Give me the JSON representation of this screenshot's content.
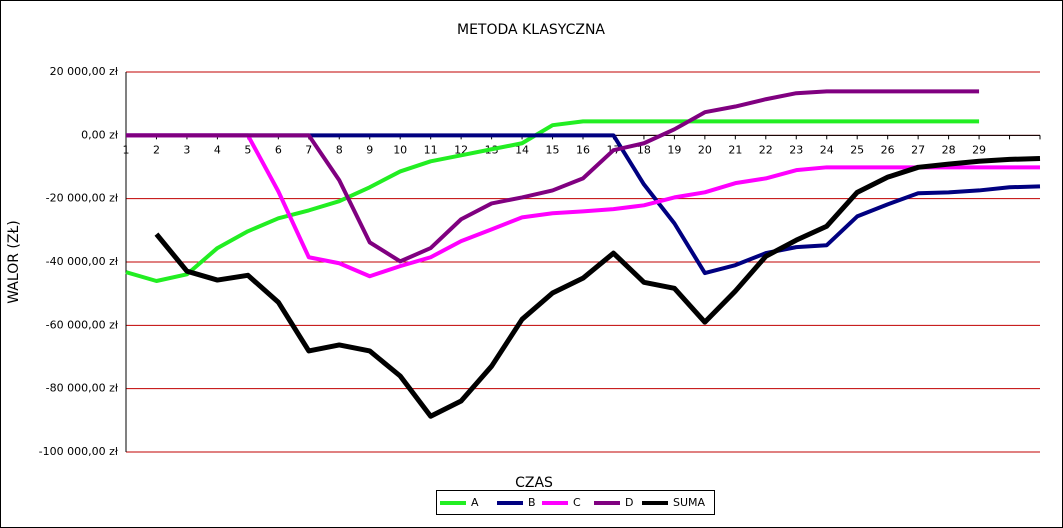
{
  "chart_data": {
    "type": "line",
    "title": "METODA KLASYCZNA",
    "x_label": "CZAS",
    "y_label": "WALOR (ZŁ)",
    "categories": [
      "1",
      "2",
      "3",
      "4",
      "5",
      "6",
      "7",
      "8",
      "9",
      "10",
      "11",
      "12",
      "13",
      "14",
      "15",
      "16",
      "17",
      "18",
      "19",
      "20",
      "21",
      "22",
      "23",
      "24",
      "25",
      "26",
      "27",
      "28",
      "29",
      null,
      null
    ],
    "ylim": [
      -100000,
      20000
    ],
    "yticks": [
      {
        "value": -100000,
        "label": "-100 000,00 zł"
      },
      {
        "value": -80000,
        "label": "-80 000,00 zł"
      },
      {
        "value": -60000,
        "label": "-60 000,00 zł"
      },
      {
        "value": -40000,
        "label": "-40 000,00 zł"
      },
      {
        "value": -20000,
        "label": "-20 000,00 zł"
      },
      {
        "value": 0,
        "label": "0,00 zł"
      },
      {
        "value": 20000,
        "label": "20 000,00 zł"
      }
    ],
    "grid": true,
    "series": [
      {
        "name": "A",
        "color": "#22ee22",
        "values": [
          -43200,
          -46000,
          -43900,
          -35600,
          -30300,
          -26200,
          -23700,
          -20800,
          -16400,
          -11400,
          -8200,
          -6300,
          -4400,
          -2500,
          3200,
          4400,
          4400,
          4400,
          4400,
          4400,
          4400,
          4400,
          4400,
          4400,
          4400,
          4400,
          4400,
          4400,
          4400,
          null,
          null
        ]
      },
      {
        "name": "B",
        "color": "#000080",
        "values": [
          0,
          0,
          0,
          0,
          0,
          0,
          0,
          0,
          0,
          0,
          0,
          0,
          0,
          0,
          0,
          0,
          0,
          -15500,
          -27800,
          -43500,
          -41000,
          -37200,
          -35300,
          -34700,
          -25600,
          -21800,
          -18300,
          -18000,
          -17400,
          -16400,
          -16100
        ]
      },
      {
        "name": "C",
        "color": "#ff00ff",
        "values": [
          0,
          0,
          0,
          0,
          0,
          -17700,
          -38500,
          -40400,
          -44500,
          -41300,
          -38500,
          -33400,
          -29700,
          -25900,
          -24600,
          -24000,
          -23300,
          -22100,
          -19600,
          -18000,
          -15100,
          -13600,
          -11000,
          -10100,
          -10100,
          -10100,
          -10100,
          -10100,
          -10100,
          -10100,
          -10100
        ]
      },
      {
        "name": "D",
        "color": "#800080",
        "values": [
          0,
          0,
          0,
          0,
          0,
          0,
          0,
          -14200,
          -33800,
          -39800,
          -35600,
          -26500,
          -21500,
          -19600,
          -17400,
          -13600,
          -4700,
          -2500,
          1900,
          7300,
          9100,
          11400,
          13300,
          13900,
          13900,
          13900,
          13900,
          13900,
          13900,
          null,
          null
        ]
      },
      {
        "name": "SUMA",
        "color": "#000000",
        "values": [
          null,
          -31200,
          -42900,
          -45700,
          -44200,
          -52700,
          -68100,
          -66200,
          -68100,
          -76000,
          -88700,
          -83900,
          -72900,
          -58100,
          -49800,
          -45100,
          -37200,
          -46400,
          -48300,
          -59000,
          -49200,
          -38200,
          -33100,
          -28700,
          -18000,
          -13200,
          -10100,
          -9100,
          -8200,
          -7600,
          -7300
        ]
      }
    ]
  }
}
